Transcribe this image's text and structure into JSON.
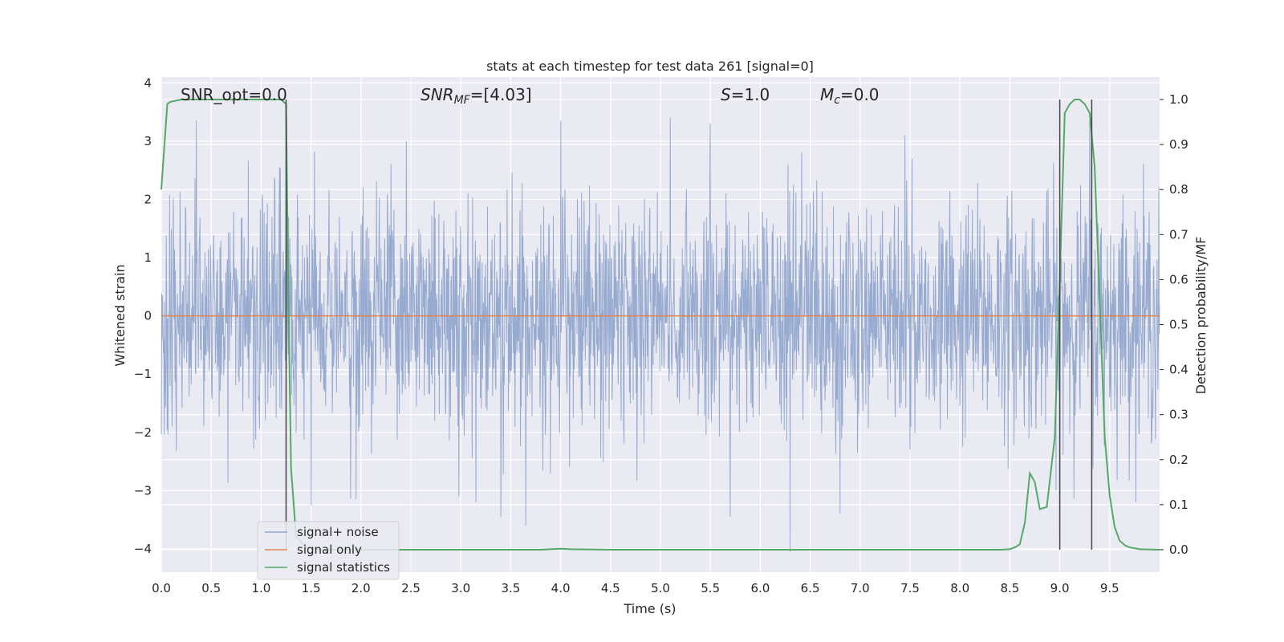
{
  "chart_data": {
    "type": "line",
    "title": "stats at each timestep for test data 261 [signal=0]",
    "xlabel": "Time (s)",
    "ylabel_left": "Whitened strain",
    "ylabel_right": "Detection probability/MF",
    "xlim": [
      0.0,
      10.0
    ],
    "ylim_left": [
      -4.4,
      4.1
    ],
    "ylim_right": [
      -0.05,
      1.05
    ],
    "x_ticks": [
      "0.0",
      "0.5",
      "1.0",
      "1.5",
      "2.0",
      "2.5",
      "3.0",
      "3.5",
      "4.0",
      "4.5",
      "5.0",
      "5.5",
      "6.0",
      "6.5",
      "7.0",
      "7.5",
      "8.0",
      "8.5",
      "9.0",
      "9.5"
    ],
    "y_left_ticks": [
      "4",
      "3",
      "2",
      "1",
      "0",
      "−1",
      "−2",
      "−3",
      "−4"
    ],
    "y_right_ticks": [
      "1.0",
      "0.9",
      "0.8",
      "0.7",
      "0.6",
      "0.5",
      "0.4",
      "0.3",
      "0.2",
      "0.1",
      "0.0"
    ],
    "grid": true,
    "legend_position": "lower-left",
    "annotations": {
      "snr_opt": "SNR_opt=0.0",
      "snr_mf_label": "SNR",
      "snr_mf_sub": "MF",
      "snr_mf_value": "=[4.03]",
      "s_label": "S",
      "s_value": "=1.0",
      "mc_label": "M",
      "mc_sub": "c",
      "mc_value": "=0.0"
    },
    "series": [
      {
        "name": "signal+ noise",
        "axis": "left",
        "color": "#92a6cd",
        "description_level": "dense noise approximately between -2.0 and 2.0 with spikes up to about 3.4 and down to about -4.0",
        "peaks": [
          {
            "x": 0.35,
            "y": 3.35
          },
          {
            "x": 1.25,
            "y": 3.05
          },
          {
            "x": 1.95,
            "y": 3.2
          },
          {
            "x": 4.0,
            "y": 3.35
          },
          {
            "x": 5.1,
            "y": 3.4
          },
          {
            "x": 5.5,
            "y": 3.3
          },
          {
            "x": 7.45,
            "y": 3.1
          },
          {
            "x": 9.3,
            "y": 3.35
          }
        ],
        "troughs": [
          {
            "x": 1.5,
            "y": -3.25
          },
          {
            "x": 1.95,
            "y": -3.15
          },
          {
            "x": 3.15,
            "y": -3.2
          },
          {
            "x": 3.4,
            "y": -3.45
          },
          {
            "x": 3.65,
            "y": -3.6
          },
          {
            "x": 5.7,
            "y": -3.45
          },
          {
            "x": 6.3,
            "y": -4.05
          },
          {
            "x": 6.8,
            "y": -3.4
          },
          {
            "x": 9.0,
            "y": -3.9
          }
        ]
      },
      {
        "name": "signal only",
        "axis": "left",
        "color": "#dd8452",
        "x": [
          0.0,
          10.0
        ],
        "y": [
          0.0,
          0.0
        ]
      },
      {
        "name": "signal statistics",
        "axis": "right",
        "color": "#55a868",
        "x": [
          0.0,
          0.06,
          0.09,
          0.2,
          0.5,
          1.0,
          1.2,
          1.25,
          1.27,
          1.3,
          1.35,
          1.45,
          1.6,
          2.0,
          3.0,
          3.8,
          4.0,
          4.1,
          4.5,
          5.0,
          6.0,
          7.0,
          8.0,
          8.4,
          8.5,
          8.55,
          8.6,
          8.65,
          8.7,
          8.75,
          8.8,
          8.87,
          8.95,
          9.0,
          9.05,
          9.1,
          9.15,
          9.2,
          9.25,
          9.3,
          9.35,
          9.4,
          9.45,
          9.5,
          9.55,
          9.6,
          9.65,
          9.7,
          9.8,
          10.0
        ],
        "y": [
          0.8,
          0.99,
          0.995,
          1.0,
          1.0,
          1.0,
          1.0,
          0.99,
          0.6,
          0.18,
          0.03,
          0.005,
          0.0,
          0.0,
          0.0,
          0.0,
          0.002,
          0.001,
          0.0,
          0.0,
          0.0,
          0.0,
          0.0,
          0.0,
          0.001,
          0.005,
          0.012,
          0.06,
          0.17,
          0.15,
          0.09,
          0.095,
          0.25,
          0.6,
          0.97,
          0.99,
          1.0,
          1.0,
          0.99,
          0.97,
          0.85,
          0.55,
          0.25,
          0.12,
          0.05,
          0.02,
          0.01,
          0.005,
          0.001,
          0.0
        ]
      }
    ],
    "vertical_lines": [
      1.25,
      9.0,
      9.32
    ]
  }
}
